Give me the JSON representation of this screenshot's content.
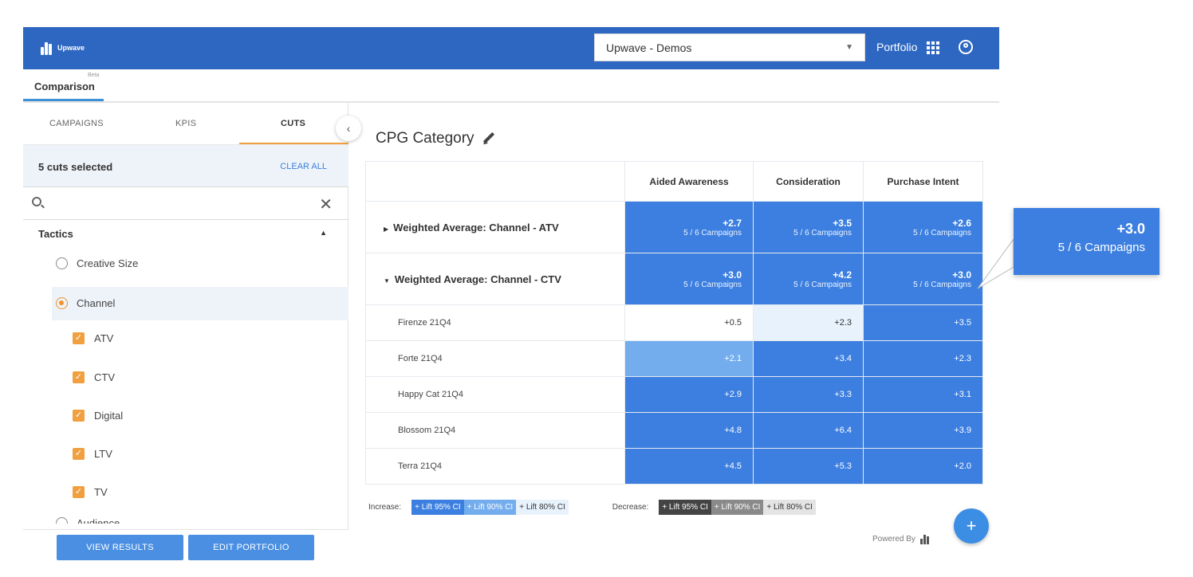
{
  "app": {
    "brand": "Upwave",
    "account": "Upwave - Demos",
    "portfolio_label": "Portfolio"
  },
  "tabs": {
    "comparison": "Comparison",
    "beta": "Beta"
  },
  "left_panel": {
    "tabs": [
      "CAMPAIGNS",
      "KPIS",
      "CUTS"
    ],
    "active_tab": "CUTS",
    "cuts_selected": "5 cuts selected",
    "clear_all": "CLEAR ALL",
    "search_placeholder": "",
    "group_title": "Tactics",
    "options": [
      {
        "label": "Creative Size",
        "selected": false
      },
      {
        "label": "Channel",
        "selected": true
      },
      {
        "label": "Audience",
        "selected": false
      }
    ],
    "channel_items": [
      "ATV",
      "CTV",
      "Digital",
      "LTV",
      "TV"
    ],
    "buttons": {
      "view_results": "VIEW RESULTS",
      "edit_portfolio": "EDIT PORTFOLIO"
    }
  },
  "main": {
    "title": "CPG Category",
    "columns": [
      "Aided Awareness",
      "Consideration",
      "Purchase Intent"
    ],
    "groups": [
      {
        "label": "Weighted Average: Channel - ATV",
        "expanded": false,
        "values": [
          "+2.7",
          "+3.5",
          "+2.6"
        ],
        "counts": [
          "5 / 6 Campaigns",
          "5 / 6 Campaigns",
          "5 / 6 Campaigns"
        ]
      },
      {
        "label": "Weighted Average: Channel - CTV",
        "expanded": true,
        "values": [
          "+3.0",
          "+4.2",
          "+3.0"
        ],
        "counts": [
          "5 / 6 Campaigns",
          "5 / 6 Campaigns",
          "5 / 6 Campaigns"
        ]
      }
    ],
    "rows": [
      {
        "label": "Firenze 21Q4",
        "values": [
          "+0.5",
          "+2.3",
          "+3.5"
        ]
      },
      {
        "label": "Forte 21Q4",
        "values": [
          "+2.1",
          "+3.4",
          "+2.3"
        ]
      },
      {
        "label": "Happy Cat 21Q4",
        "values": [
          "+2.9",
          "+3.3",
          "+3.1"
        ]
      },
      {
        "label": "Blossom 21Q4",
        "values": [
          "+4.8",
          "+6.4",
          "+3.9"
        ]
      },
      {
        "label": "Terra 21Q4",
        "values": [
          "+4.5",
          "+5.3",
          "+2.0"
        ]
      }
    ],
    "legend": {
      "increase": "Increase:",
      "decrease": "Decrease:",
      "swatches": [
        "+ Lift 95% CI",
        "+ Lift 90% CI",
        "+ Lift 80% CI"
      ],
      "increase_colors": [
        "#3c7fe0",
        "#73adee",
        "#e8f2fc"
      ],
      "decrease_colors": [
        "#444444",
        "#8a8a8a",
        "#e4e4e4"
      ]
    },
    "callout": {
      "value": "+3.0",
      "count": "5 / 6 Campaigns"
    },
    "powered_by": "Powered By",
    "fab": "+"
  }
}
